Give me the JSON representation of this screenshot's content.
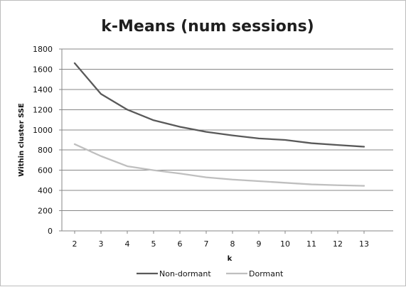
{
  "chart_data": {
    "type": "line",
    "title": "k-Means (num sessions)",
    "xlabel": "k",
    "ylabel": "Within cluster SSE",
    "x": [
      2,
      3,
      4,
      5,
      6,
      7,
      8,
      9,
      10,
      11,
      12,
      13
    ],
    "x_tick_labels": [
      "2",
      "3",
      "4",
      "5",
      "6",
      "7",
      "8",
      "9",
      "10",
      "11",
      "12",
      "13"
    ],
    "ylim": [
      0,
      1800
    ],
    "y_ticks": [
      0,
      200,
      400,
      600,
      800,
      1000,
      1200,
      1400,
      1600,
      1800
    ],
    "y_tick_labels": [
      "0",
      "200",
      "400",
      "600",
      "800",
      "1000",
      "1200",
      "1400",
      "1600",
      "1800"
    ],
    "grid": true,
    "legend_position": "bottom",
    "series": [
      {
        "name": "Non-dormant",
        "color": "#595959",
        "values": [
          1660,
          1355,
          1200,
          1095,
          1030,
          980,
          945,
          915,
          900,
          868,
          850,
          833
        ]
      },
      {
        "name": "Dormant",
        "color": "#bfbfbf",
        "values": [
          858,
          740,
          640,
          600,
          568,
          530,
          508,
          492,
          476,
          460,
          452,
          446
        ]
      }
    ]
  }
}
